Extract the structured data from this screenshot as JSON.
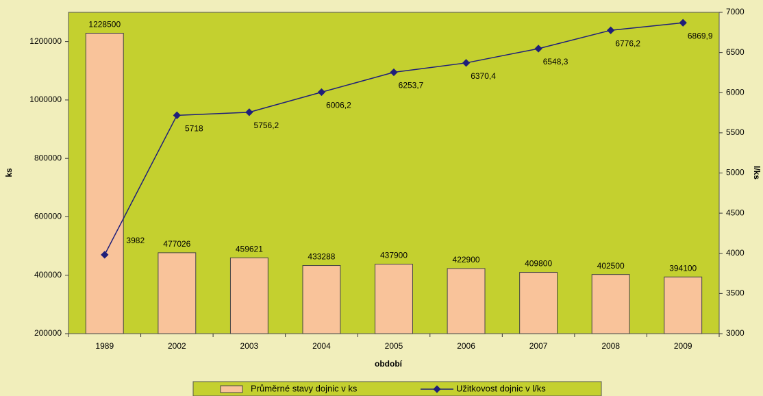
{
  "chart_data": {
    "type": "bar-line",
    "x_label": "období",
    "y_label": "ks",
    "y2_label": "l/ks",
    "categories": [
      "1989",
      "2002",
      "2003",
      "2004",
      "2005",
      "2006",
      "2007",
      "2008",
      "2009"
    ],
    "series": [
      {
        "name": "Průměrné stavy dojnic v ks",
        "type": "bar",
        "color": "#f9c39a",
        "values": [
          1228500,
          477026,
          459621,
          433288,
          437900,
          422900,
          409800,
          402500,
          394100
        ]
      },
      {
        "name": "Užitkovost dojnic v l/ks",
        "type": "line",
        "axis": "y2",
        "color": "#1f1f7a",
        "values": [
          3982,
          5718,
          5756.2,
          6006.2,
          6253.7,
          6370.4,
          6548.3,
          6776.2,
          6869.9
        ],
        "value_labels": [
          "3982",
          "5718",
          "5756,2",
          "6006,2",
          "6253,7",
          "6370,4",
          "6548,3",
          "6776,2",
          "6869,9"
        ]
      }
    ],
    "ylim": [
      200000,
      1300000
    ],
    "yticks": [
      200000,
      400000,
      600000,
      800000,
      1000000,
      1200000
    ],
    "y2lim": [
      3000,
      7000
    ],
    "y2ticks": [
      3000,
      3500,
      4000,
      4500,
      5000,
      5500,
      6000,
      6500,
      7000
    ],
    "legend": "bottom"
  }
}
